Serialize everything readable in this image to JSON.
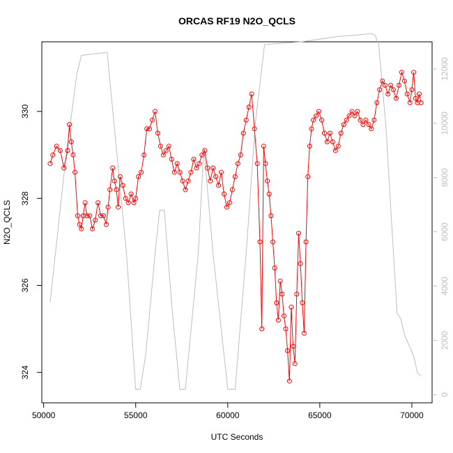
{
  "chart_data": {
    "type": "line",
    "title": "ORCAS RF19 N2O_QCLS",
    "xlabel": "UTC Seconds",
    "ylabel": "N2O_QCLS",
    "xlim": [
      49900,
      71100
    ],
    "ylim": [
      323.3,
      331.6
    ],
    "x_ticks": [
      50000,
      55000,
      60000,
      65000,
      70000
    ],
    "y_ticks": [
      324,
      326,
      328,
      330
    ],
    "y2lim": [
      -300,
      13000
    ],
    "y2_ticks": [
      0,
      2000,
      4000,
      6000,
      8000,
      10000,
      12000
    ],
    "grid": false,
    "legend": "none",
    "series": [
      {
        "role": "primary",
        "color": "#ff0000",
        "style": "line-with-open-circles",
        "points": [
          [
            50350,
            328.8
          ],
          [
            50500,
            329.0
          ],
          [
            50700,
            329.2
          ],
          [
            50900,
            329.1
          ],
          [
            51100,
            328.7
          ],
          [
            51300,
            329.1
          ],
          [
            51400,
            329.7
          ],
          [
            51500,
            329.3
          ],
          [
            51600,
            329.0
          ],
          [
            51700,
            328.6
          ],
          [
            51850,
            327.6
          ],
          [
            51950,
            327.4
          ],
          [
            52050,
            327.3
          ],
          [
            52150,
            327.6
          ],
          [
            52250,
            327.9
          ],
          [
            52350,
            327.6
          ],
          [
            52500,
            327.6
          ],
          [
            52650,
            327.3
          ],
          [
            52800,
            327.5
          ],
          [
            52950,
            327.9
          ],
          [
            53100,
            327.6
          ],
          [
            53250,
            327.6
          ],
          [
            53400,
            327.4
          ],
          [
            53500,
            327.8
          ],
          [
            53600,
            328.2
          ],
          [
            53750,
            328.7
          ],
          [
            53850,
            328.4
          ],
          [
            53950,
            328.2
          ],
          [
            54050,
            327.8
          ],
          [
            54150,
            328.5
          ],
          [
            54300,
            328.3
          ],
          [
            54450,
            328.0
          ],
          [
            54600,
            327.9
          ],
          [
            54750,
            328.1
          ],
          [
            54900,
            327.9
          ],
          [
            55000,
            328.0
          ],
          [
            55150,
            328.5
          ],
          [
            55300,
            328.6
          ],
          [
            55450,
            329.0
          ],
          [
            55600,
            329.6
          ],
          [
            55750,
            329.6
          ],
          [
            55900,
            329.8
          ],
          [
            56050,
            330.0
          ],
          [
            56200,
            329.5
          ],
          [
            56350,
            329.2
          ],
          [
            56500,
            329.0
          ],
          [
            56650,
            329.1
          ],
          [
            56800,
            329.2
          ],
          [
            56950,
            328.9
          ],
          [
            57100,
            328.6
          ],
          [
            57250,
            328.8
          ],
          [
            57400,
            328.6
          ],
          [
            57550,
            328.4
          ],
          [
            57700,
            328.2
          ],
          [
            57850,
            328.4
          ],
          [
            58000,
            328.6
          ],
          [
            58150,
            328.9
          ],
          [
            58300,
            328.7
          ],
          [
            58450,
            328.8
          ],
          [
            58600,
            329.0
          ],
          [
            58750,
            329.1
          ],
          [
            58900,
            328.7
          ],
          [
            59050,
            328.4
          ],
          [
            59200,
            328.7
          ],
          [
            59350,
            328.5
          ],
          [
            59500,
            328.3
          ],
          [
            59650,
            328.6
          ],
          [
            59800,
            328.1
          ],
          [
            59950,
            327.8
          ],
          [
            60100,
            327.9
          ],
          [
            60250,
            328.2
          ],
          [
            60400,
            328.5
          ],
          [
            60550,
            328.8
          ],
          [
            60700,
            329.0
          ],
          [
            60850,
            329.5
          ],
          [
            61000,
            329.8
          ],
          [
            61150,
            330.1
          ],
          [
            61300,
            330.4
          ],
          [
            61450,
            329.6
          ],
          [
            61600,
            328.8
          ],
          [
            61750,
            327.0
          ],
          [
            61850,
            325.0
          ],
          [
            61950,
            329.2
          ],
          [
            62050,
            328.8
          ],
          [
            62150,
            328.4
          ],
          [
            62250,
            328.1
          ],
          [
            62350,
            327.6
          ],
          [
            62450,
            327.0
          ],
          [
            62550,
            326.4
          ],
          [
            62650,
            325.6
          ],
          [
            62750,
            325.2
          ],
          [
            62850,
            326.1
          ],
          [
            62950,
            325.8
          ],
          [
            63050,
            325.3
          ],
          [
            63150,
            325.0
          ],
          [
            63250,
            324.5
          ],
          [
            63350,
            323.8
          ],
          [
            63450,
            325.5
          ],
          [
            63550,
            324.6
          ],
          [
            63650,
            324.2
          ],
          [
            63750,
            325.8
          ],
          [
            63850,
            327.2
          ],
          [
            63950,
            326.5
          ],
          [
            64050,
            325.6
          ],
          [
            64150,
            324.9
          ],
          [
            64250,
            327.0
          ],
          [
            64350,
            328.5
          ],
          [
            64450,
            329.2
          ],
          [
            64550,
            329.6
          ],
          [
            64650,
            329.8
          ],
          [
            64800,
            329.9
          ],
          [
            64950,
            330.0
          ],
          [
            65100,
            329.8
          ],
          [
            65250,
            329.5
          ],
          [
            65400,
            329.3
          ],
          [
            65550,
            329.5
          ],
          [
            65700,
            329.3
          ],
          [
            65850,
            329.1
          ],
          [
            66000,
            329.2
          ],
          [
            66150,
            329.5
          ],
          [
            66300,
            329.7
          ],
          [
            66450,
            329.8
          ],
          [
            66600,
            329.9
          ],
          [
            66750,
            330.0
          ],
          [
            66900,
            329.9
          ],
          [
            67050,
            330.0
          ],
          [
            67200,
            329.8
          ],
          [
            67350,
            329.7
          ],
          [
            67500,
            329.8
          ],
          [
            67650,
            329.7
          ],
          [
            67800,
            329.6
          ],
          [
            67950,
            329.8
          ],
          [
            68100,
            330.2
          ],
          [
            68250,
            330.5
          ],
          [
            68400,
            330.7
          ],
          [
            68550,
            330.6
          ],
          [
            68700,
            330.4
          ],
          [
            68850,
            330.6
          ],
          [
            69000,
            330.5
          ],
          [
            69150,
            330.3
          ],
          [
            69300,
            330.6
          ],
          [
            69450,
            330.9
          ],
          [
            69600,
            330.7
          ],
          [
            69750,
            330.4
          ],
          [
            69900,
            330.2
          ],
          [
            70000,
            330.5
          ],
          [
            70100,
            330.9
          ],
          [
            70200,
            330.3
          ],
          [
            70300,
            330.2
          ],
          [
            70400,
            330.4
          ],
          [
            70500,
            330.2
          ]
        ]
      },
      {
        "role": "secondary",
        "color": "#bdbdbd",
        "style": "line",
        "points": [
          [
            50350,
            3400
          ],
          [
            51200,
            8700
          ],
          [
            51800,
            11800
          ],
          [
            52050,
            12500
          ],
          [
            53300,
            12600
          ],
          [
            53450,
            12600
          ],
          [
            54500,
            5200
          ],
          [
            55000,
            200
          ],
          [
            55250,
            200
          ],
          [
            55550,
            1500
          ],
          [
            56050,
            5200
          ],
          [
            56300,
            6800
          ],
          [
            56550,
            6800
          ],
          [
            57000,
            3000
          ],
          [
            57400,
            200
          ],
          [
            57700,
            200
          ],
          [
            58400,
            5200
          ],
          [
            58700,
            9100
          ],
          [
            59200,
            5200
          ],
          [
            60000,
            200
          ],
          [
            60400,
            200
          ],
          [
            61000,
            5200
          ],
          [
            61500,
            10000
          ],
          [
            62000,
            12900
          ],
          [
            63000,
            12950
          ],
          [
            64000,
            13000
          ],
          [
            65000,
            13100
          ],
          [
            66000,
            13200
          ],
          [
            67000,
            13250
          ],
          [
            67800,
            13300
          ],
          [
            68000,
            13250
          ],
          [
            68200,
            12900
          ],
          [
            68600,
            9800
          ],
          [
            68800,
            7500
          ],
          [
            69200,
            3000
          ],
          [
            69400,
            2800
          ],
          [
            69600,
            2200
          ],
          [
            70000,
            1600
          ],
          [
            70150,
            1300
          ],
          [
            70300,
            800
          ],
          [
            70500,
            700
          ]
        ]
      }
    ]
  }
}
